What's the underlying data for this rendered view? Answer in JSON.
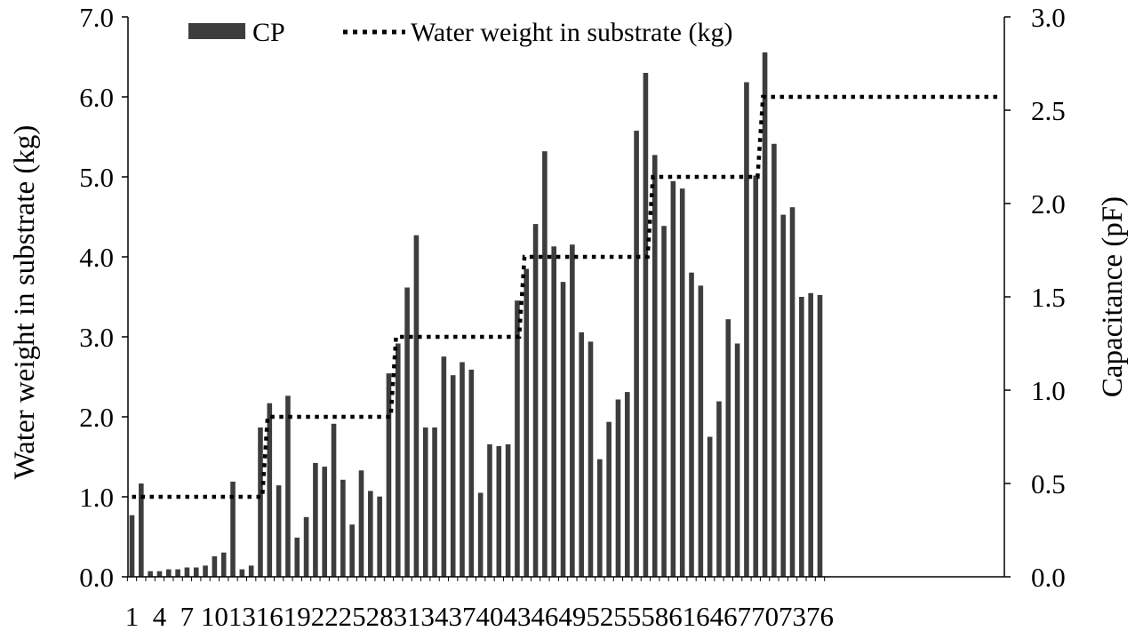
{
  "chart_data": {
    "type": "bar",
    "title": "",
    "ylabel": "Water weight in substrate (kg)",
    "y2label": "Capacitance (pF)",
    "ylim": [
      0,
      7
    ],
    "y2lim": [
      0,
      3
    ],
    "yticks": [
      "0.0",
      "1.0",
      "2.0",
      "3.0",
      "4.0",
      "5.0",
      "6.0",
      "7.0"
    ],
    "y2ticks": [
      "0.0",
      "0.5",
      "1.0",
      "1.5",
      "2.0",
      "2.5",
      "3.0"
    ],
    "xtick_labels": [
      "1",
      "4",
      "7",
      "10",
      "13",
      "16",
      "19",
      "22",
      "25",
      "28",
      "31",
      "34",
      "37",
      "40",
      "43",
      "46",
      "49",
      "52",
      "55",
      "58",
      "61",
      "64",
      "67",
      "70",
      "73",
      "76"
    ],
    "legend": {
      "placement": "top",
      "items": [
        "CP",
        "Water weight in substrate (kg)"
      ]
    },
    "categories": [
      1,
      2,
      3,
      4,
      5,
      6,
      7,
      8,
      9,
      10,
      11,
      12,
      13,
      14,
      15,
      16,
      17,
      18,
      19,
      20,
      21,
      22,
      23,
      24,
      25,
      26,
      27,
      28,
      29,
      30,
      31,
      32,
      33,
      34,
      35,
      36,
      37,
      38,
      39,
      40,
      41,
      42,
      43,
      44,
      45,
      46,
      47,
      48,
      49,
      50,
      51,
      52,
      53,
      54,
      55,
      56,
      57,
      58,
      59,
      60,
      61,
      62,
      63,
      64,
      65,
      66,
      67,
      68,
      69,
      70,
      71,
      72,
      73,
      74,
      75,
      76
    ],
    "series": [
      {
        "name": "CP",
        "kind": "bar",
        "axis": "right",
        "values": [
          0.33,
          0.5,
          0.03,
          0.03,
          0.04,
          0.04,
          0.05,
          0.05,
          0.06,
          0.11,
          0.13,
          0.51,
          0.04,
          0.06,
          0.8,
          0.93,
          0.49,
          0.97,
          0.21,
          0.32,
          0.61,
          0.59,
          0.82,
          0.52,
          0.28,
          0.57,
          0.46,
          0.43,
          1.09,
          1.25,
          1.55,
          1.83,
          0.8,
          0.8,
          1.18,
          1.08,
          1.15,
          1.11,
          0.45,
          0.71,
          0.7,
          0.71,
          1.48,
          1.65,
          1.89,
          2.28,
          1.77,
          1.58,
          1.78,
          1.31,
          1.26,
          0.63,
          0.83,
          0.95,
          0.99,
          2.39,
          2.7,
          2.26,
          1.88,
          2.12,
          2.08,
          1.63,
          1.56,
          0.75,
          0.94,
          1.38,
          1.25,
          2.65,
          2.15,
          2.81,
          2.32,
          1.94,
          1.98,
          1.5,
          1.52,
          1.51
        ]
      },
      {
        "name": "Water weight in substrate (kg)",
        "kind": "line",
        "axis": "left",
        "style": "dotted",
        "values": [
          1.0,
          1.0,
          1.0,
          1.0,
          1.0,
          1.0,
          1.0,
          1.0,
          1.0,
          1.0,
          1.0,
          1.0,
          1.0,
          1.0,
          1.0,
          2.0,
          2.0,
          2.0,
          2.0,
          2.0,
          2.0,
          2.0,
          2.0,
          2.0,
          2.0,
          2.0,
          2.0,
          2.0,
          2.0,
          3.0,
          3.0,
          3.0,
          3.0,
          3.0,
          3.0,
          3.0,
          3.0,
          3.0,
          3.0,
          3.0,
          3.0,
          3.0,
          3.0,
          4.0,
          4.0,
          4.0,
          4.0,
          4.0,
          4.0,
          4.0,
          4.0,
          4.0,
          4.0,
          4.0,
          4.0,
          4.0,
          4.0,
          5.0,
          5.0,
          5.0,
          5.0,
          5.0,
          5.0,
          5.0,
          5.0,
          5.0,
          5.0,
          5.0,
          5.0,
          6.0,
          6.0,
          6.0,
          6.0,
          6.0,
          6.0,
          6.0
        ]
      }
    ]
  },
  "colors": {
    "bar": "#3d3d3d",
    "line": "#000000",
    "axis": "#000000"
  }
}
